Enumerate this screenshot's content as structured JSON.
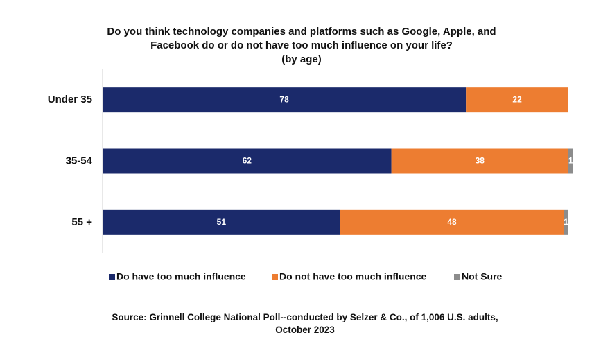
{
  "chart_data": {
    "type": "stacked-bar",
    "orientation": "horizontal",
    "title": "Do you think technology companies and platforms such as Google, Apple, and Facebook do or do not have too much influence on your life?",
    "subtitle": "(by age)",
    "categories": [
      "Under 35",
      "35-54",
      "55 +"
    ],
    "series": [
      {
        "name": "Do have too much influence",
        "color": "#1b2a6b",
        "values": [
          78,
          62,
          51
        ]
      },
      {
        "name": "Do not have too much influence",
        "color": "#ed7d31",
        "values": [
          22,
          38,
          48
        ]
      },
      {
        "name": "Not Sure",
        "color": "#8c8c8c",
        "values": [
          0,
          1,
          1
        ]
      }
    ],
    "xlim": [
      0,
      100
    ],
    "legend": "bottom",
    "source": "Source: Grinnell College National Poll--conducted by Selzer & Co., of 1,006 U.S. adults, October 2023"
  }
}
